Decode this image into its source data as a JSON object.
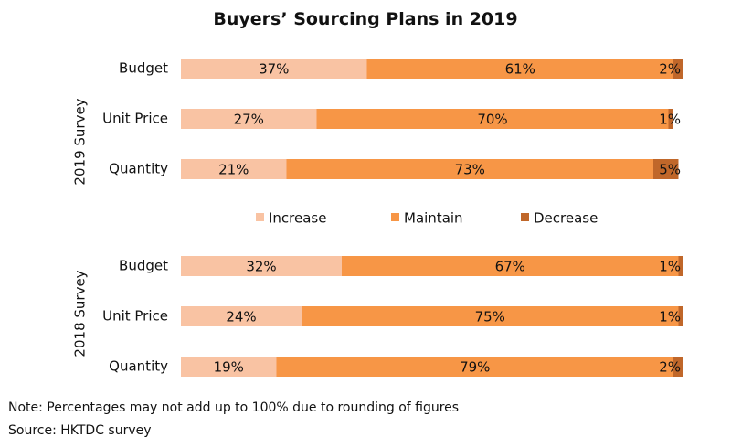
{
  "title": "Buyers’ Sourcing Plans in 2019",
  "note": "Note: Percentages may not add up to 100% due to rounding of figures",
  "source": "Source: HKTDC survey",
  "colors": {
    "Increase": "#f9c3a3",
    "Maintain": "#f79646",
    "Decrease": "#c0672a"
  },
  "chart_data": {
    "type": "bar",
    "orientation": "horizontal",
    "stacked": true,
    "legend_position": "middle",
    "groups": [
      {
        "name": "2019 Survey",
        "categories": [
          "Budget",
          "Unit Price",
          "Quantity"
        ],
        "series": [
          {
            "name": "Increase",
            "values": [
              37,
              27,
              21
            ]
          },
          {
            "name": "Maintain",
            "values": [
              61,
              70,
              73
            ]
          },
          {
            "name": "Decrease",
            "values": [
              2,
              1,
              5
            ]
          }
        ]
      },
      {
        "name": "2018 Survey",
        "categories": [
          "Budget",
          "Unit Price",
          "Quantity"
        ],
        "series": [
          {
            "name": "Increase",
            "values": [
              32,
              24,
              19
            ]
          },
          {
            "name": "Maintain",
            "values": [
              67,
              75,
              79
            ]
          },
          {
            "name": "Decrease",
            "values": [
              1,
              1,
              2
            ]
          }
        ]
      }
    ],
    "legend": [
      "Increase",
      "Maintain",
      "Decrease"
    ],
    "value_suffix": "%",
    "xlim": [
      0,
      100
    ]
  }
}
